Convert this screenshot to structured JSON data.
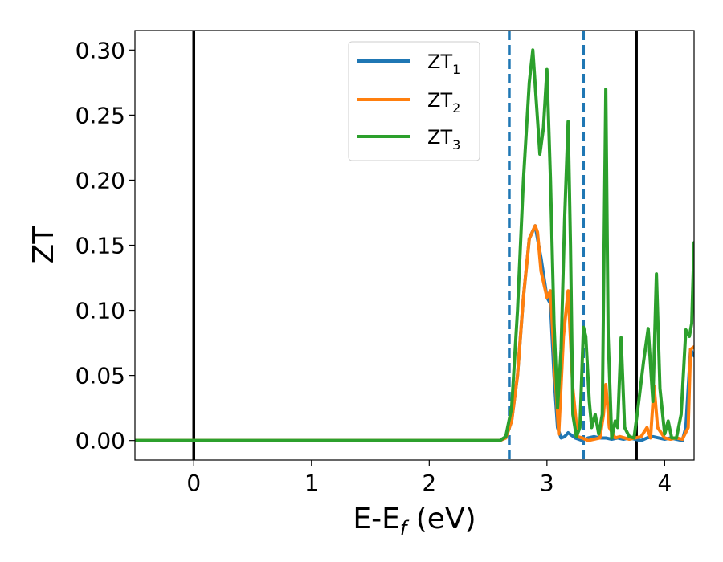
{
  "chart_data": {
    "type": "line",
    "title": "",
    "xlabel_main": "E-E",
    "xlabel_sub": "f",
    "xlabel_unit": " (eV)",
    "ylabel": "ZT",
    "xlim": [
      -0.5,
      4.25
    ],
    "ylim": [
      -0.015,
      0.315
    ],
    "xticks": [
      0,
      1,
      2,
      3,
      4
    ],
    "xtick_labels": [
      "0",
      "1",
      "2",
      "3",
      "4"
    ],
    "yticks": [
      0.0,
      0.05,
      0.1,
      0.15,
      0.2,
      0.25,
      0.3
    ],
    "ytick_labels": [
      "0.00",
      "0.05",
      "0.10",
      "0.15",
      "0.20",
      "0.25",
      "0.30"
    ],
    "grid": false,
    "legend_position": "top-center",
    "vertical_lines": [
      {
        "x": 0.0,
        "style": "solid",
        "color": "#000000"
      },
      {
        "x": 3.76,
        "style": "solid",
        "color": "#000000"
      },
      {
        "x": 2.68,
        "style": "dashed",
        "color": "#1f77b4"
      },
      {
        "x": 3.31,
        "style": "dashed",
        "color": "#1f77b4"
      }
    ],
    "series": [
      {
        "name_main": "ZT",
        "name_sub": "1",
        "color": "#1f77b4",
        "x": [
          -0.5,
          2.6,
          2.65,
          2.7,
          2.75,
          2.8,
          2.85,
          2.9,
          2.95,
          3.0,
          3.03,
          3.06,
          3.09,
          3.12,
          3.15,
          3.18,
          3.21,
          3.24,
          3.27,
          3.3,
          3.35,
          3.4,
          3.45,
          3.5,
          3.55,
          3.6,
          3.65,
          3.7,
          3.75,
          3.8,
          3.85,
          3.9,
          3.95,
          4.0,
          4.05,
          4.1,
          4.15,
          4.18,
          4.22,
          4.25
        ],
        "y": [
          0.0,
          0.0,
          0.002,
          0.015,
          0.05,
          0.11,
          0.155,
          0.165,
          0.14,
          0.11,
          0.105,
          0.05,
          0.01,
          0.002,
          0.003,
          0.006,
          0.004,
          0.002,
          0.001,
          0.0,
          0.002,
          0.003,
          0.002,
          0.002,
          0.001,
          0.002,
          0.001,
          0.002,
          0.001,
          0.0,
          0.002,
          0.003,
          0.002,
          0.001,
          0.002,
          0.001,
          0.0,
          0.01,
          0.07,
          0.065
        ]
      },
      {
        "name_main": "ZT",
        "name_sub": "2",
        "color": "#ff7f0e",
        "x": [
          -0.5,
          2.6,
          2.65,
          2.7,
          2.75,
          2.8,
          2.85,
          2.9,
          2.92,
          2.95,
          3.0,
          3.03,
          3.07,
          3.1,
          3.14,
          3.18,
          3.22,
          3.26,
          3.3,
          3.35,
          3.4,
          3.45,
          3.48,
          3.5,
          3.53,
          3.58,
          3.62,
          3.66,
          3.7,
          3.75,
          3.8,
          3.85,
          3.88,
          3.91,
          3.94,
          4.0,
          4.05,
          4.1,
          4.15,
          4.2,
          4.22,
          4.25
        ],
        "y": [
          0.0,
          0.0,
          0.002,
          0.015,
          0.05,
          0.11,
          0.155,
          0.165,
          0.16,
          0.13,
          0.11,
          0.115,
          0.05,
          0.005,
          0.08,
          0.115,
          0.04,
          0.003,
          0.002,
          0.0,
          0.001,
          0.002,
          0.02,
          0.043,
          0.01,
          0.002,
          0.003,
          0.002,
          0.001,
          0.002,
          0.003,
          0.01,
          0.002,
          0.042,
          0.01,
          0.002,
          0.001,
          0.002,
          0.001,
          0.01,
          0.07,
          0.072
        ]
      },
      {
        "name_main": "ZT",
        "name_sub": "3",
        "color": "#2ca02c",
        "x": [
          -0.5,
          2.6,
          2.65,
          2.7,
          2.75,
          2.8,
          2.85,
          2.88,
          2.91,
          2.94,
          2.97,
          3.0,
          3.03,
          3.06,
          3.09,
          3.12,
          3.15,
          3.18,
          3.2,
          3.22,
          3.25,
          3.28,
          3.31,
          3.33,
          3.36,
          3.38,
          3.41,
          3.44,
          3.47,
          3.5,
          3.52,
          3.55,
          3.58,
          3.6,
          3.63,
          3.66,
          3.7,
          3.74,
          3.78,
          3.82,
          3.86,
          3.9,
          3.93,
          3.96,
          4.0,
          4.03,
          4.06,
          4.1,
          4.14,
          4.18,
          4.21,
          4.23,
          4.25
        ],
        "y": [
          0.0,
          0.0,
          0.003,
          0.025,
          0.1,
          0.2,
          0.275,
          0.3,
          0.26,
          0.22,
          0.24,
          0.285,
          0.2,
          0.09,
          0.025,
          0.07,
          0.17,
          0.245,
          0.15,
          0.02,
          0.003,
          0.01,
          0.087,
          0.08,
          0.03,
          0.01,
          0.02,
          0.005,
          0.02,
          0.27,
          0.08,
          0.002,
          0.015,
          0.01,
          0.079,
          0.01,
          0.003,
          0.002,
          0.03,
          0.06,
          0.086,
          0.03,
          0.128,
          0.04,
          0.005,
          0.015,
          0.002,
          0.002,
          0.02,
          0.085,
          0.08,
          0.09,
          0.152
        ]
      }
    ]
  }
}
